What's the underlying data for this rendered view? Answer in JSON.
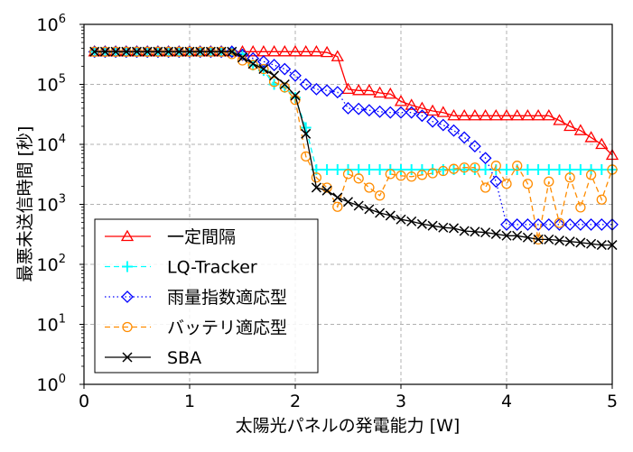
{
  "chart_data": {
    "type": "line",
    "title": "",
    "xlabel": "太陽光パネルの発電能力 [W]",
    "ylabel": "最悪未送信時間 [秒]",
    "xlim": [
      0,
      5
    ],
    "ylim": [
      1,
      1000000
    ],
    "yscale": "log",
    "grid": true,
    "legend_position": "bottom-left",
    "x_ticks": [
      "0",
      "1",
      "2",
      "3",
      "4",
      "5"
    ],
    "y_ticks": [
      {
        "base": "10",
        "exp": "0"
      },
      {
        "base": "10",
        "exp": "1"
      },
      {
        "base": "10",
        "exp": "2"
      },
      {
        "base": "10",
        "exp": "3"
      },
      {
        "base": "10",
        "exp": "4"
      },
      {
        "base": "10",
        "exp": "5"
      },
      {
        "base": "10",
        "exp": "6"
      }
    ],
    "x": [
      0.1,
      0.2,
      0.3,
      0.4,
      0.5,
      0.6,
      0.7,
      0.8,
      0.9,
      1.0,
      1.1,
      1.2,
      1.3,
      1.4,
      1.5,
      1.6,
      1.7,
      1.8,
      1.9,
      2.0,
      2.1,
      2.2,
      2.3,
      2.4,
      2.5,
      2.6,
      2.7,
      2.8,
      2.9,
      3.0,
      3.1,
      3.2,
      3.3,
      3.4,
      3.5,
      3.6,
      3.7,
      3.8,
      3.9,
      4.0,
      4.1,
      4.2,
      4.3,
      4.4,
      4.5,
      4.6,
      4.7,
      4.8,
      4.9,
      5.0
    ],
    "series": [
      {
        "name": "一定間隔",
        "color": "#ff0000",
        "marker": "triangle",
        "linestyle": "solid",
        "values": [
          350000,
          350000,
          350000,
          350000,
          350000,
          350000,
          350000,
          350000,
          350000,
          350000,
          350000,
          350000,
          350000,
          350000,
          350000,
          350000,
          350000,
          350000,
          350000,
          350000,
          350000,
          350000,
          340000,
          290000,
          83000,
          79000,
          79000,
          72000,
          69000,
          52000,
          45000,
          40000,
          36000,
          34000,
          30000,
          30000,
          30000,
          30000,
          30000,
          30000,
          30000,
          30000,
          30000,
          30000,
          25000,
          20000,
          17000,
          13000,
          10000,
          6600
        ]
      },
      {
        "name": "LQ-Tracker",
        "color": "#00ffff",
        "marker": "plus",
        "linestyle": "dashed",
        "values": [
          350000,
          350000,
          350000,
          350000,
          350000,
          350000,
          350000,
          350000,
          350000,
          350000,
          350000,
          350000,
          350000,
          350000,
          320000,
          210000,
          170000,
          100000,
          89000,
          60000,
          19000,
          3800,
          3800,
          3800,
          3800,
          3800,
          3800,
          3800,
          3800,
          3800,
          3800,
          3800,
          3800,
          3800,
          3800,
          3800,
          3800,
          3800,
          3800,
          3800,
          3800,
          3800,
          3800,
          3800,
          3800,
          3800,
          3800,
          3800,
          3800,
          3800
        ]
      },
      {
        "name": "雨量指数適応型",
        "color": "#0000ff",
        "marker": "diamond",
        "linestyle": "dotted",
        "values": [
          350000,
          350000,
          350000,
          350000,
          350000,
          350000,
          350000,
          350000,
          350000,
          350000,
          350000,
          350000,
          350000,
          350000,
          310000,
          270000,
          240000,
          210000,
          180000,
          140000,
          100000,
          83000,
          79000,
          74000,
          40000,
          39000,
          37000,
          35000,
          34000,
          34000,
          34000,
          30000,
          24000,
          21000,
          17000,
          13000,
          9300,
          5900,
          2400,
          460,
          460,
          460,
          460,
          460,
          460,
          460,
          460,
          460,
          460,
          460
        ]
      },
      {
        "name": "バッテリ適応型",
        "color": "#ff8c00",
        "marker": "circle",
        "linestyle": "dashed",
        "values": [
          350000,
          350000,
          350000,
          350000,
          350000,
          350000,
          350000,
          350000,
          350000,
          350000,
          350000,
          350000,
          350000,
          320000,
          250000,
          210000,
          180000,
          110000,
          89000,
          55000,
          6300,
          2800,
          1900,
          910,
          3200,
          2700,
          1900,
          1400,
          3200,
          3000,
          2900,
          3100,
          3300,
          3600,
          3900,
          4100,
          4100,
          1900,
          4400,
          2200,
          4400,
          2200,
          260,
          2400,
          490,
          2800,
          890,
          3100,
          1200,
          3800
        ]
      },
      {
        "name": "SBA",
        "color": "#000000",
        "marker": "x",
        "linestyle": "solid",
        "values": [
          350000,
          350000,
          350000,
          350000,
          350000,
          350000,
          350000,
          350000,
          350000,
          350000,
          350000,
          350000,
          350000,
          350000,
          280000,
          220000,
          180000,
          140000,
          100000,
          65000,
          15000,
          1900,
          1700,
          1300,
          1100,
          950,
          830,
          720,
          650,
          560,
          520,
          470,
          440,
          410,
          400,
          360,
          350,
          340,
          320,
          300,
          300,
          280,
          260,
          260,
          250,
          240,
          230,
          220,
          210,
          210
        ]
      }
    ]
  }
}
